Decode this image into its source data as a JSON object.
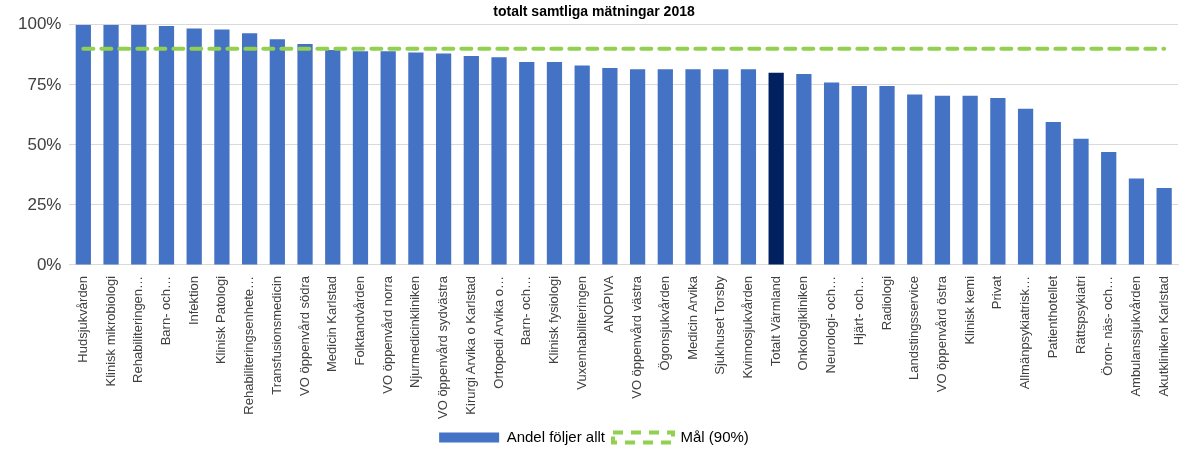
{
  "chart_data": {
    "type": "bar",
    "title": "totalt samtliga mätningar 2018",
    "categories": [
      "Hudsjukvården",
      "Klinisk mikrobiologi",
      "Rehabiliteringen…",
      "Barn- och…",
      "Infektion",
      "Klinisk Patologi",
      "Rehabiliteringsenhete…",
      "Transfusionsmedicin",
      "VO öppenvård södra",
      "Medicin Karlstad",
      "Folktandvården",
      "VO öppenvård norra",
      "Njurmedicinkliniken",
      "VO öppenvård sydvästra",
      "Kirurgi Arvika o Karlstad",
      "Ortopedi Arvika o…",
      "Barn- och…",
      "Klinisk fysiologi",
      "Vuxenhabiliteringen",
      "ANOPIVA",
      "VO öppenvård västra",
      "Ögonsjukvården",
      "Medicin Arvika",
      "Sjukhuset Torsby",
      "Kvinnosjukvården",
      "Totalt Värmland",
      "Onkologikliniken",
      "Neurologi- och…",
      "Hjärt- och…",
      "Radiologi",
      "Landstingsservice",
      "VO öppenvård östra",
      "Klinisk kemi",
      "Privat",
      "Allmänpsykiatrisk…",
      "Patienthotellet",
      "Rättspsykiatri",
      "Öron- näs- och…",
      "Ambulanssjukvården",
      "Akutkliniken Karlstad"
    ],
    "series": [
      {
        "name": "Andel följer allt",
        "color": "#4472c4",
        "colors": [
          "#4472c4",
          "#4472c4",
          "#4472c4",
          "#4472c4",
          "#4472c4",
          "#4472c4",
          "#4472c4",
          "#4472c4",
          "#4472c4",
          "#4472c4",
          "#4472c4",
          "#4472c4",
          "#4472c4",
          "#4472c4",
          "#4472c4",
          "#4472c4",
          "#4472c4",
          "#4472c4",
          "#4472c4",
          "#4472c4",
          "#4472c4",
          "#4472c4",
          "#4472c4",
          "#4472c4",
          "#4472c4",
          "#002060",
          "#4472c4",
          "#4472c4",
          "#4472c4",
          "#4472c4",
          "#4472c4",
          "#4472c4",
          "#4472c4",
          "#4472c4",
          "#4472c4",
          "#4472c4",
          "#4472c4",
          "#4472c4",
          "#4472c4",
          "#4472c4"
        ],
        "values": [
          100,
          100,
          100,
          99.5,
          98.5,
          98,
          96.5,
          94,
          92,
          89.5,
          89,
          89,
          88.5,
          88,
          87,
          86.5,
          84.5,
          84.5,
          83,
          82,
          81.5,
          81.5,
          81.5,
          81.5,
          81.5,
          80,
          79.5,
          76,
          74.5,
          74.5,
          71,
          70.5,
          70.5,
          69.5,
          65,
          59.5,
          52.5,
          47,
          36,
          32
        ]
      },
      {
        "name": "Mål (90%)",
        "type": "line",
        "color": "#92d050",
        "line_style": "dashed",
        "marker": "none",
        "values": [
          90,
          90,
          90,
          90,
          90,
          90,
          90,
          90,
          90,
          90,
          90,
          90,
          90,
          90,
          90,
          90,
          90,
          90,
          90,
          90,
          90,
          90,
          90,
          90,
          90,
          90,
          90,
          90,
          90,
          90,
          90,
          90,
          90,
          90,
          90,
          90,
          90,
          90,
          90,
          90
        ]
      }
    ],
    "ylim": [
      0,
      100
    ],
    "yticks": [
      {
        "value": 0,
        "label": "0%"
      },
      {
        "value": 25,
        "label": "25%"
      },
      {
        "value": 50,
        "label": "50%"
      },
      {
        "value": 75,
        "label": "75%"
      },
      {
        "value": 100,
        "label": "100%"
      }
    ],
    "grid": "y",
    "legend": "bottom"
  }
}
